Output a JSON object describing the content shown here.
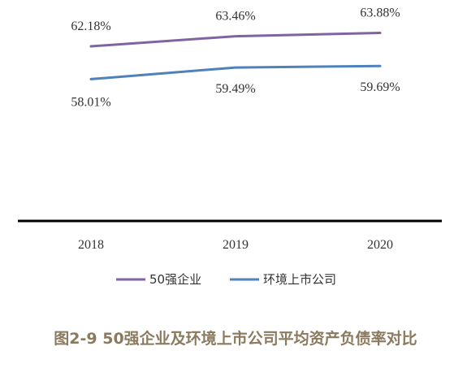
{
  "chart_data": {
    "type": "line",
    "title": "",
    "caption": "图2-9 50强企业及环境上市公司平均资产负债率对比",
    "categories": [
      "2018",
      "2019",
      "2020"
    ],
    "ylim": [
      40,
      66
    ],
    "grid": false,
    "legend_position": "bottom",
    "series": [
      {
        "name": "50强企业",
        "values": [
          62.18,
          63.46,
          63.88
        ],
        "labels": [
          "62.18%",
          "63.46%",
          "63.88%"
        ],
        "color": "#8064a2"
      },
      {
        "name": "环境上市公司",
        "values": [
          58.01,
          59.49,
          59.69
        ],
        "labels": [
          "58.01%",
          "59.49%",
          "59.69%"
        ],
        "color": "#4f81bd"
      }
    ],
    "axis_color": "#000000"
  }
}
